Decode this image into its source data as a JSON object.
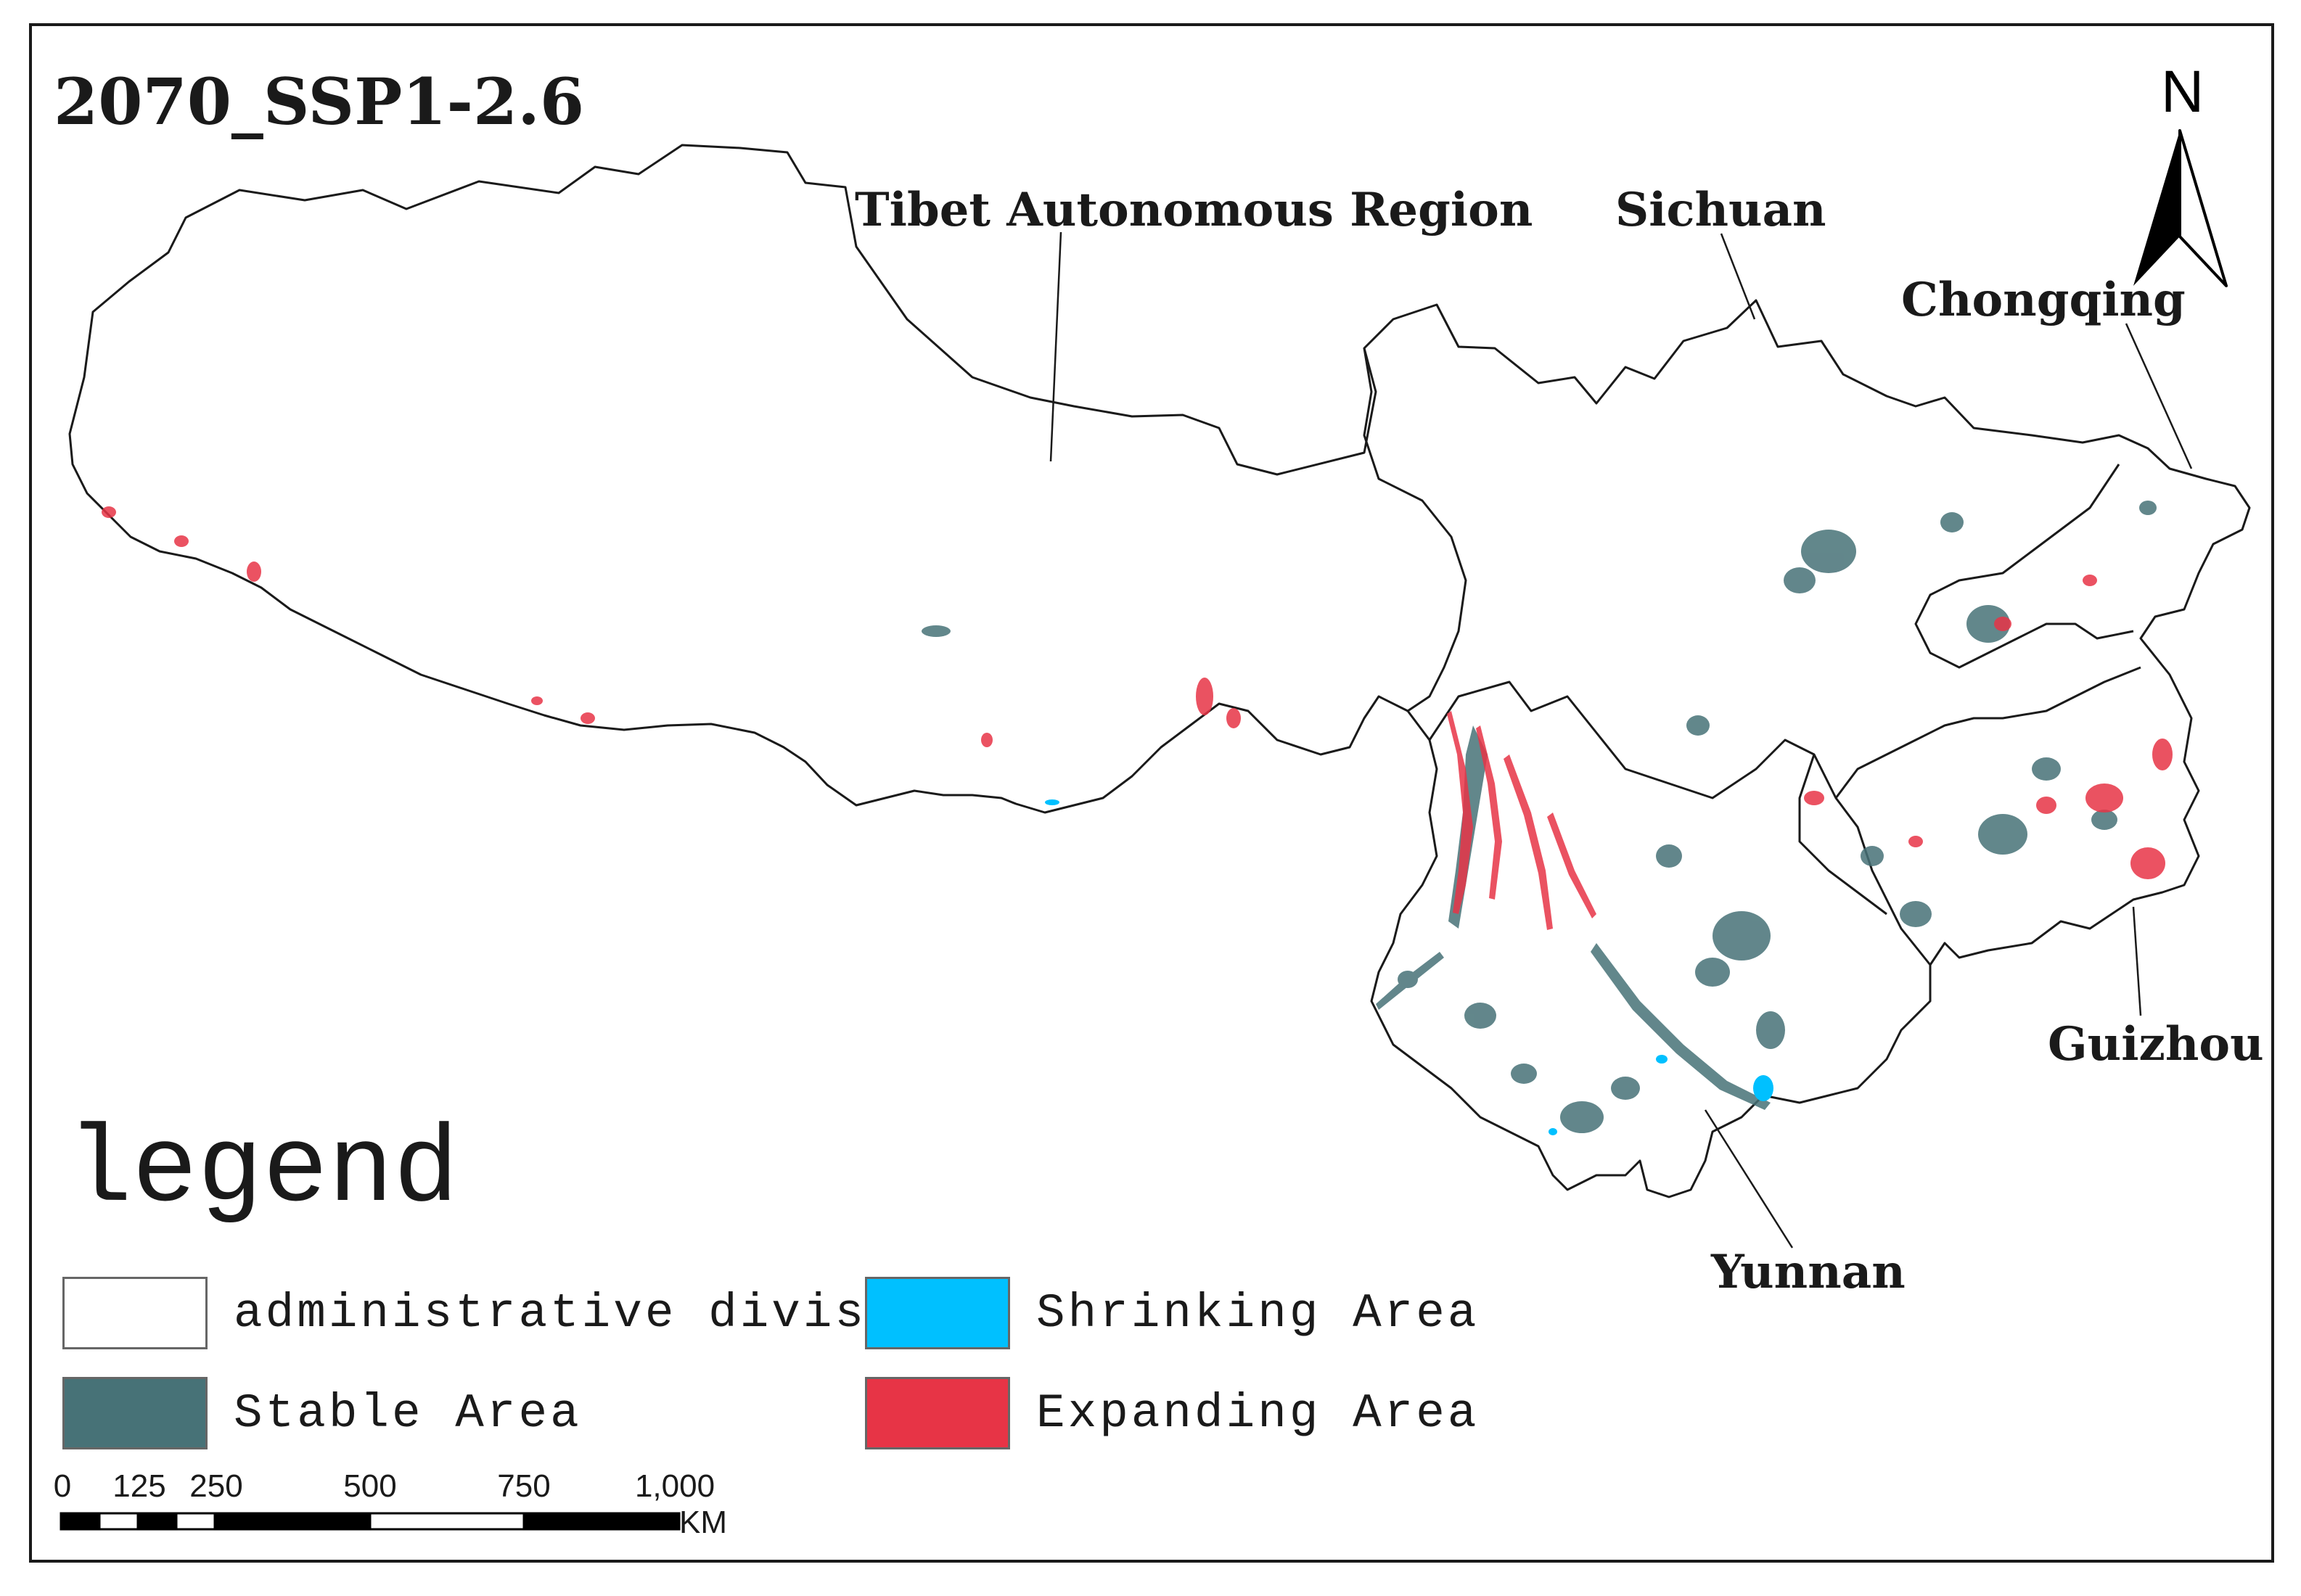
{
  "map": {
    "title": "2070_SSP1-2.6",
    "regions": {
      "tibet": "Tibet Autonomous Region",
      "sichuan": "Sichuan",
      "chongqing": "Chongqing",
      "guizhou": "Guizhou",
      "yunnan": "Yunnan"
    },
    "north_label": "N"
  },
  "legend": {
    "heading": "legend",
    "items": [
      {
        "id": "admin",
        "label": "administrative division",
        "color": "#ffffff"
      },
      {
        "id": "shrinking",
        "label": "Shrinking Area",
        "color": "#00c0ff"
      },
      {
        "id": "stable",
        "label": "Stable Area",
        "color": "#477277"
      },
      {
        "id": "expanding",
        "label": "Expanding Area",
        "color": "#e73446"
      }
    ]
  },
  "scale_bar": {
    "ticks": [
      "0",
      "125",
      "250",
      "500",
      "750",
      "1,000"
    ],
    "unit": "KM"
  }
}
